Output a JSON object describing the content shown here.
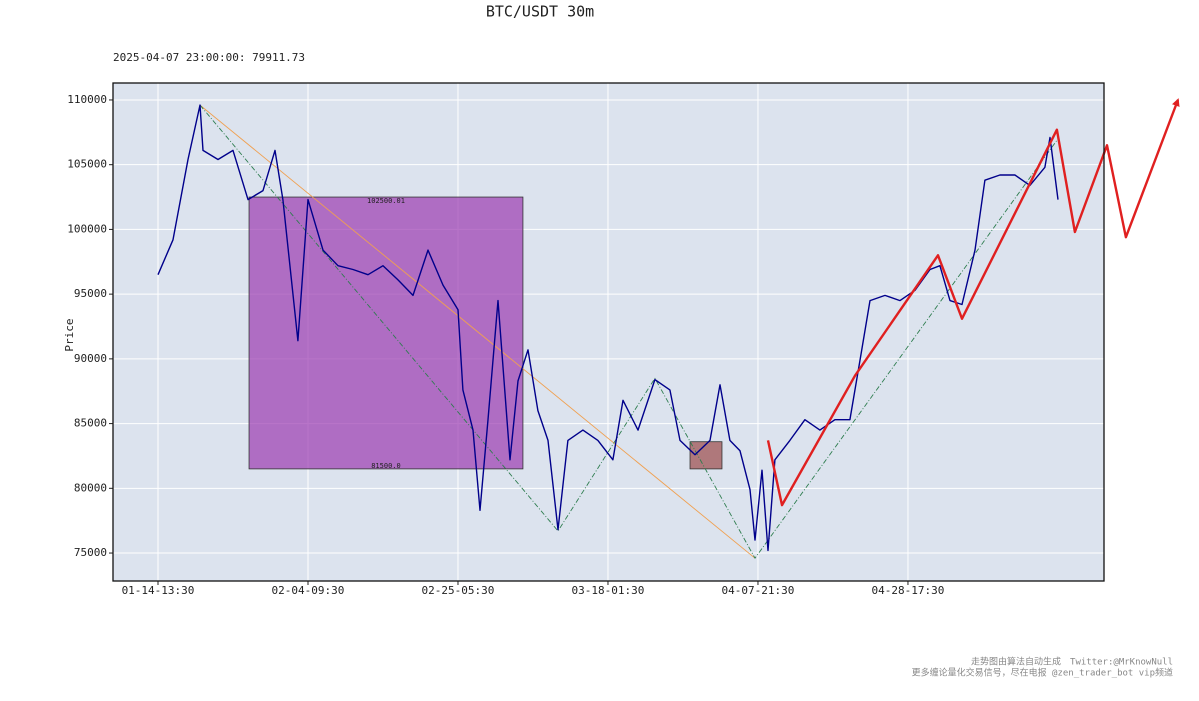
{
  "chart_data": {
    "type": "line",
    "title": "BTC/USDT 30m",
    "subtitle": "2025-04-07 23:00:00: 79911.73",
    "ylabel": "Price",
    "xlim": [
      -300,
      6307
    ],
    "ylim": [
      72840,
      111310
    ],
    "xticks": [
      {
        "value": 0,
        "label": "01-14-13:30"
      },
      {
        "value": 1000,
        "label": "02-04-09:30"
      },
      {
        "value": 2000,
        "label": "02-25-05:30"
      },
      {
        "value": 3000,
        "label": "03-18-01:30"
      },
      {
        "value": 4000,
        "label": "04-07-21:30"
      },
      {
        "value": 5000,
        "label": "04-28-17:30"
      }
    ],
    "yticks": [
      75000,
      80000,
      85000,
      90000,
      95000,
      100000,
      105000,
      110000
    ],
    "grid": true,
    "boxes": [
      {
        "color": "#9b3ab0",
        "x": [
          607,
          2433
        ],
        "top": 102500.01,
        "bottom": {
          "value": 81500,
          "label": "81500.0"
        }
      },
      {
        "color": "#9b4a4a",
        "x": [
          3547,
          3760
        ],
        "top": 83600,
        "bottom": 81500
      }
    ],
    "series": [
      {
        "color": "#f0a050",
        "style": "solid",
        "x": [
          280,
          3980
        ],
        "values": [
          109600,
          74600
        ]
      },
      {
        "color": "#2e7d4f",
        "style": "dashdot",
        "x": [
          280,
          2667,
          3313,
          3980,
          6000
        ],
        "values": [
          109600,
          76700,
          88500,
          74600,
          107000
        ]
      },
      {
        "color": "#00008b",
        "style": "price",
        "x": [
          0,
          100,
          200,
          280,
          300,
          400,
          500,
          600,
          700,
          780,
          833,
          933,
          1000,
          1100,
          1200,
          1300,
          1400,
          1500,
          1600,
          1700,
          1800,
          1900,
          2000,
          2033,
          2100,
          2147,
          2200,
          2267,
          2347,
          2400,
          2467,
          2533,
          2600,
          2667,
          2733,
          2833,
          2933,
          3033,
          3100,
          3200,
          3313,
          3413,
          3480,
          3580,
          3680,
          3747,
          3813,
          3880,
          3947,
          3980,
          4027,
          4067,
          4113,
          4213,
          4313,
          4413,
          4513,
          4613,
          4680,
          4747,
          4847,
          4947,
          5047,
          5147,
          5213,
          5280,
          5360,
          5447,
          5513,
          5613,
          5713,
          5813,
          5913,
          5947,
          6000
        ],
        "values": [
          96500,
          99200,
          105400,
          109600,
          106100,
          105400,
          106100,
          102300,
          103000,
          106100,
          102300,
          91400,
          102300,
          98400,
          97200,
          96900,
          96500,
          97200,
          96100,
          94900,
          98400,
          95700,
          93800,
          87600,
          84500,
          78300,
          85300,
          94500,
          82200,
          88300,
          90700,
          86000,
          83700,
          76800,
          83700,
          84500,
          83700,
          82200,
          86800,
          84500,
          88400,
          87600,
          83700,
          82600,
          83700,
          88000,
          83700,
          82900,
          79900,
          76000,
          81400,
          75200,
          82200,
          83700,
          85300,
          84500,
          85300,
          85300,
          89900,
          94500,
          94900,
          94500,
          95300,
          96900,
          97200,
          94500,
          94200,
          98400,
          103800,
          104200,
          104200,
          103400,
          104800,
          107100,
          102300
        ]
      },
      {
        "color": "#e02020",
        "style": "arrow",
        "x": [
          4067,
          4160,
          4647,
          5200,
          5360,
          5993,
          6113,
          6327,
          6453,
          6800
        ],
        "values": [
          83700,
          78700,
          88700,
          98000,
          93100,
          107700,
          99800,
          106500,
          99400,
          110000
        ]
      }
    ],
    "footer": [
      "走势图由算法自动生成　Twitter:@MrKnowNull",
      "更多缠论量化交易信号，尽在电报 @zen_trader_bot vip频道"
    ]
  }
}
